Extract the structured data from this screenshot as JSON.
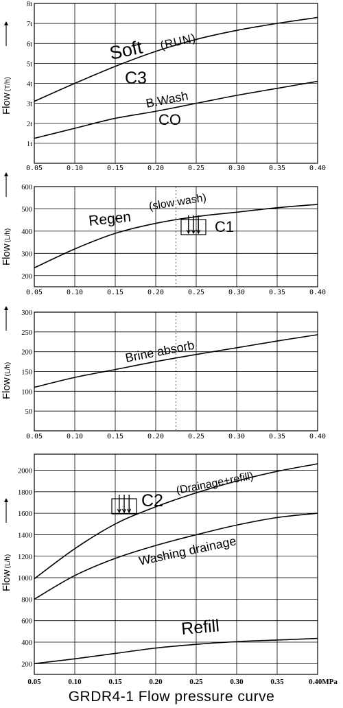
{
  "title": "GRDR4-1 Flow pressure curve",
  "colors": {
    "backwash_line": "#1a2ed8",
    "co_label": "#e0201a",
    "ink": "#000000"
  },
  "chart_data": [
    {
      "type": "line",
      "xlabel": "",
      "ylabel": "Flow",
      "ylabel_unit": "(T/h)",
      "x_ticks": [
        "0.05",
        "0.10",
        "0.15",
        "0.20",
        "0.25",
        "0.30",
        "0.35",
        "0.40"
      ],
      "y_ticks": [
        "1t",
        "2t",
        "3t",
        "4t",
        "5t",
        "6t",
        "7t",
        "8t"
      ],
      "xlim": [
        0.05,
        0.4
      ],
      "ylim": [
        0,
        8
      ],
      "series": [
        {
          "name": "Soft (RUN)",
          "x": [
            0.05,
            0.1,
            0.15,
            0.2,
            0.25,
            0.3,
            0.35,
            0.4
          ],
          "y": [
            3.1,
            4.0,
            4.85,
            5.6,
            6.2,
            6.65,
            7.0,
            7.3
          ]
        },
        {
          "name": "B.Wash",
          "x": [
            0.05,
            0.1,
            0.15,
            0.2,
            0.25,
            0.3,
            0.35,
            0.4
          ],
          "y": [
            1.25,
            1.75,
            2.25,
            2.6,
            3.0,
            3.4,
            3.75,
            4.1
          ]
        }
      ],
      "annotations": [
        "Soft",
        "(RUN)",
        "C3",
        "B.Wash",
        "CO"
      ]
    },
    {
      "type": "line",
      "xlabel": "",
      "ylabel": "Flow",
      "ylabel_unit": "(L/h)",
      "x_ticks": [
        "0.05",
        "0.10",
        "0.15",
        "0.20",
        "0.25",
        "0.30",
        "0.35",
        "0.40"
      ],
      "y_ticks": [
        "200",
        "300",
        "400",
        "500",
        "600"
      ],
      "xlim": [
        0.05,
        0.4
      ],
      "ylim": [
        150,
        600
      ],
      "series": [
        {
          "name": "Regen (slow wash)",
          "x": [
            0.05,
            0.1,
            0.15,
            0.2,
            0.25,
            0.3,
            0.35,
            0.4
          ],
          "y": [
            235,
            320,
            390,
            435,
            465,
            485,
            505,
            520
          ]
        }
      ],
      "annotations": [
        "Regen",
        "(slow wash)",
        "C1"
      ]
    },
    {
      "type": "line",
      "xlabel": "",
      "ylabel": "Flow",
      "ylabel_unit": "(L/h)",
      "x_ticks": [
        "0.05",
        "0.10",
        "0.15",
        "0.20",
        "0.25",
        "0.30",
        "0.35",
        "0.40"
      ],
      "y_ticks": [
        "50",
        "100",
        "150",
        "200",
        "250",
        "300"
      ],
      "xlim": [
        0.05,
        0.4
      ],
      "ylim": [
        0,
        300
      ],
      "series": [
        {
          "name": "Brine absorb",
          "x": [
            0.05,
            0.1,
            0.15,
            0.2,
            0.25,
            0.3,
            0.35,
            0.4
          ],
          "y": [
            110,
            135,
            155,
            175,
            193,
            210,
            227,
            243
          ]
        }
      ],
      "annotations": [
        "Brine absorb"
      ]
    },
    {
      "type": "line",
      "xlabel": "",
      "ylabel": "Flow",
      "ylabel_unit": "(L/h)",
      "x_ticks": [
        "0.05",
        "0.10",
        "0.15",
        "0.20",
        "0.25",
        "0.30",
        "0.35",
        "0.40MPa"
      ],
      "y_ticks": [
        "200",
        "400",
        "600",
        "800",
        "1000",
        "1200",
        "1400",
        "1600",
        "1800",
        "2000"
      ],
      "xlim": [
        0.05,
        0.4
      ],
      "ylim": [
        100,
        2150
      ],
      "series": [
        {
          "name": "C2 (Drainage+refill)",
          "x": [
            0.05,
            0.1,
            0.15,
            0.2,
            0.25,
            0.3,
            0.35,
            0.4
          ],
          "y": [
            990,
            1270,
            1500,
            1660,
            1790,
            1900,
            1990,
            2060
          ]
        },
        {
          "name": "Washing drainage",
          "x": [
            0.05,
            0.1,
            0.15,
            0.2,
            0.25,
            0.3,
            0.35,
            0.4
          ],
          "y": [
            800,
            1020,
            1180,
            1300,
            1400,
            1490,
            1560,
            1600
          ]
        },
        {
          "name": "Refill",
          "x": [
            0.05,
            0.1,
            0.15,
            0.2,
            0.25,
            0.3,
            0.35,
            0.4
          ],
          "y": [
            200,
            245,
            295,
            345,
            380,
            405,
            420,
            435
          ]
        }
      ],
      "annotations": [
        "C2",
        "(Drainage+refill)",
        "Washing drainage",
        "Refill"
      ]
    }
  ]
}
